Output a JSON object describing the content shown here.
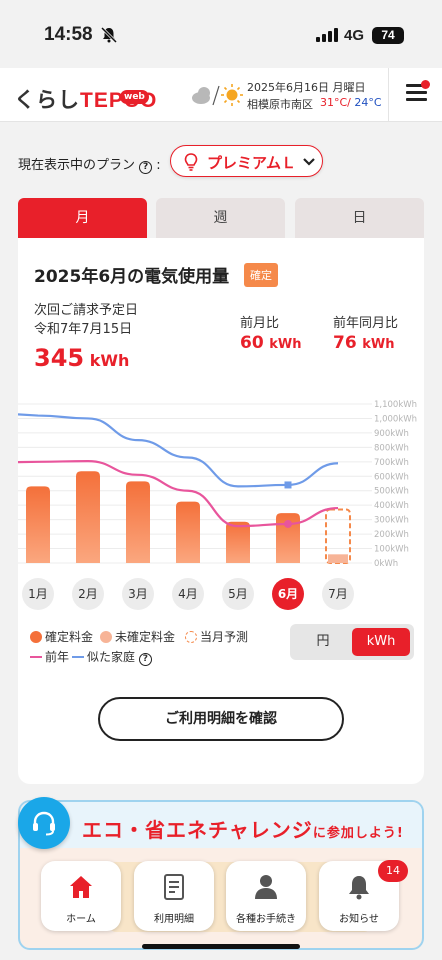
{
  "status": {
    "time": "14:58",
    "network": "4G",
    "battery": "74"
  },
  "header": {
    "logo_prefix": "くらし",
    "logo_brand": "TEPCO",
    "logo_badge": "web",
    "date": "2025年6月16日 月曜日",
    "location": "相模原市南区",
    "temp_max": "31°C/",
    "temp_min": "24°C",
    "weather_icons": [
      "cloud-icon",
      "sun-icon"
    ]
  },
  "plan": {
    "label": "現在表示中のプラン",
    "help": "?",
    "colon": ":",
    "selected": "プレミアムＬ"
  },
  "tabs": [
    "月",
    "週",
    "日"
  ],
  "summary": {
    "title": "2025年6月の電気使用量",
    "status": "確定",
    "bill_label": "次回ご請求予定日",
    "bill_date": "令和7年7月15日",
    "usage_value": "345",
    "usage_unit": "kWh",
    "mom_label": "前月比",
    "mom_value": "60",
    "yoy_label": "前年同月比",
    "yoy_value": "76",
    "cmp_unit": "kWh"
  },
  "chart_data": {
    "type": "bar",
    "categories": [
      "1月",
      "2月",
      "3月",
      "4月",
      "5月",
      "6月",
      "7月"
    ],
    "y_ticks": [
      "1,100kWh",
      "1,000kWh",
      "900kWh",
      "800kWh",
      "700kWh",
      "600kWh",
      "500kWh",
      "400kWh",
      "300kWh",
      "200kWh",
      "100kWh",
      "0kWh"
    ],
    "ylim": [
      0,
      1100
    ],
    "series": [
      {
        "name": "確定料金",
        "type": "bar",
        "values": [
          530,
          635,
          565,
          425,
          285,
          345,
          null
        ],
        "color": "#f4703a"
      },
      {
        "name": "未確定料金",
        "type": "bar",
        "values": [
          null,
          null,
          null,
          null,
          null,
          null,
          60
        ],
        "color": "#f7b497"
      },
      {
        "name": "当月予測",
        "type": "bar-outline",
        "values": [
          null,
          null,
          null,
          null,
          null,
          null,
          370
        ],
        "color": "#f5894a"
      },
      {
        "name": "前年",
        "type": "line",
        "values": [
          700,
          705,
          610,
          500,
          255,
          270,
          380
        ],
        "color": "#e8559c"
      },
      {
        "name": "似た家庭",
        "type": "line",
        "values": [
          1020,
          1000,
          850,
          730,
          530,
          540,
          690
        ],
        "color": "#6f9be8"
      }
    ],
    "legend_placement": "bottom",
    "grid": true
  },
  "selected_month": "6月",
  "legend": {
    "confirmed": "確定料金",
    "unconfirmed": "未確定料金",
    "forecast": "当月予測",
    "last_year": "前年",
    "similar": "似た家庭",
    "help": "?"
  },
  "unit_toggle": {
    "yen": "円",
    "kwh": "kWh"
  },
  "detail_button": "ご利用明細を確認",
  "banner": {
    "text": "エコ・省エネ",
    "text2": "チャレンジ",
    "suffix": "に参加しよう!"
  },
  "nav": [
    {
      "label": "ホーム",
      "icon": "home-icon"
    },
    {
      "label": "利用明細",
      "icon": "document-icon"
    },
    {
      "label": "各種お手続き",
      "icon": "person-icon"
    },
    {
      "label": "お知らせ",
      "icon": "bell-icon"
    }
  ],
  "notification_count": "14",
  "colors": {
    "accent": "#e8202a",
    "bar": "#f4703a",
    "line_last_year": "#e8559c",
    "line_similar": "#6f9be8"
  }
}
